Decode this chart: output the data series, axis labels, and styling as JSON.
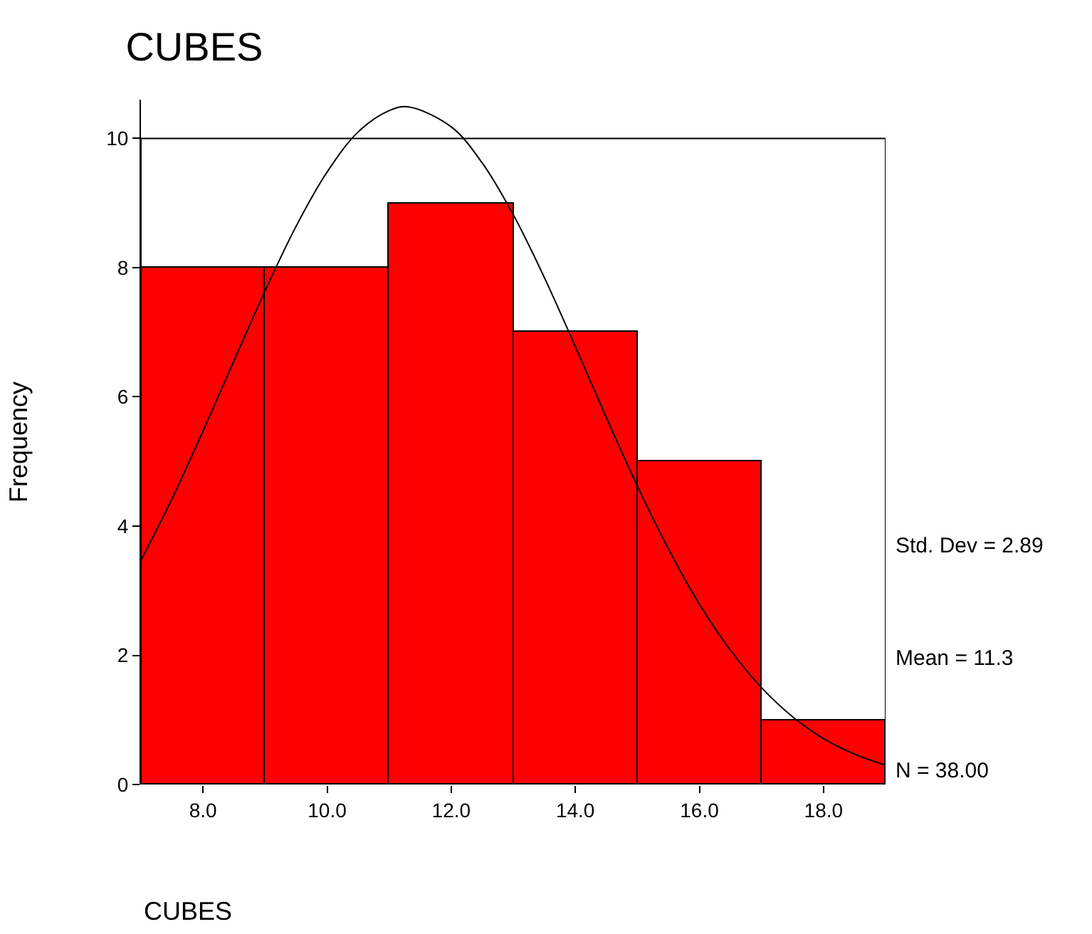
{
  "chart_data": {
    "type": "histogram",
    "title": "CUBES",
    "xlabel": "CUBES",
    "ylabel": "Frequency",
    "bins": [
      7,
      9,
      11,
      13,
      15,
      17,
      19
    ],
    "values": [
      8,
      8,
      9,
      7,
      5,
      1
    ],
    "color": "#ff0000",
    "series": [
      {
        "type": "line",
        "color": "#000000",
        "x": [
          7,
          7.5,
          8,
          8.5,
          9,
          9.5,
          10,
          10.5,
          11,
          11.3,
          12,
          12.5,
          13,
          13.5,
          14,
          14.5,
          15,
          15.5,
          16,
          16.5,
          17,
          17.5,
          18,
          18.5,
          19
        ],
        "values": [
          3.47,
          4.42,
          5.47,
          6.56,
          7.64,
          8.64,
          9.48,
          10.1,
          10.43,
          10.49,
          10.18,
          9.62,
          8.82,
          7.85,
          6.78,
          5.68,
          4.62,
          3.65,
          2.79,
          2.08,
          1.5,
          1.05,
          0.71,
          0.47,
          0.3
        ]
      }
    ],
    "xlim": [
      7,
      19
    ],
    "ylim": [
      0,
      10.6
    ],
    "xticks": [
      {
        "value": 8,
        "label": "8.0"
      },
      {
        "value": 10,
        "label": "10.0"
      },
      {
        "value": 12,
        "label": "12.0"
      },
      {
        "value": 14,
        "label": "14.0"
      },
      {
        "value": 16,
        "label": "16.0"
      },
      {
        "value": 18,
        "label": "18.0"
      }
    ],
    "yticks": [
      0,
      2,
      4,
      6,
      8,
      10
    ],
    "annotations": [
      "Std. Dev = 2.89",
      "Mean = 11.3",
      "N = 38.00"
    ]
  }
}
